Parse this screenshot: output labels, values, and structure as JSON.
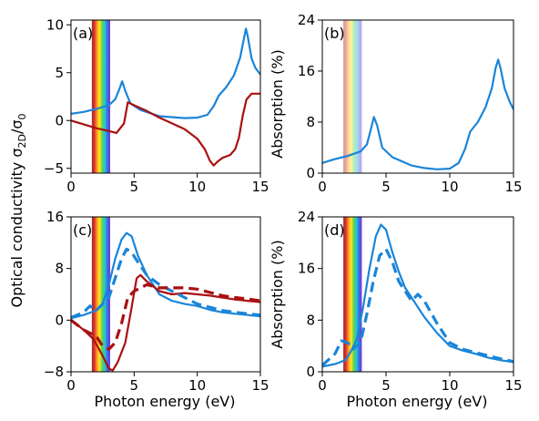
{
  "figure": {
    "ylabel_left_main": "Optical conductivity σ",
    "ylabel_left_sub": "2D",
    "ylabel_left_slash": "/σ",
    "ylabel_left_sub2": "0",
    "xlabel": "Photon energy (eV)",
    "ylabel_right": "Absorption (%)"
  },
  "colors": {
    "blue": "#1a85d9",
    "red": "#aa1010"
  },
  "spectrum_band_ev": [
    1.65,
    3.1
  ],
  "chart_data": [
    {
      "type": "line",
      "panel_label": "(a)",
      "xlim": [
        0,
        15
      ],
      "ylim": [
        -5.5,
        10.5
      ],
      "xticks": [
        0,
        5,
        10,
        15
      ],
      "yticks": [
        -5,
        0,
        5,
        10
      ],
      "xticklabels": [
        "0",
        "5",
        "10",
        "15"
      ],
      "yticklabels": [
        "−5",
        "0",
        "5",
        "10"
      ],
      "series": [
        {
          "color": "#1a85d9",
          "dash": false,
          "points": [
            [
              0,
              0.7
            ],
            [
              1,
              0.9
            ],
            [
              2,
              1.2
            ],
            [
              3,
              1.6
            ],
            [
              3.5,
              2.2
            ],
            [
              3.8,
              3.2
            ],
            [
              4.05,
              4.1
            ],
            [
              4.3,
              3.1
            ],
            [
              4.7,
              1.8
            ],
            [
              5.5,
              1.1
            ],
            [
              7,
              0.45
            ],
            [
              9,
              0.25
            ],
            [
              10,
              0.3
            ],
            [
              10.8,
              0.6
            ],
            [
              11.3,
              1.5
            ],
            [
              11.7,
              2.6
            ],
            [
              12.3,
              3.5
            ],
            [
              12.9,
              4.7
            ],
            [
              13.4,
              6.6
            ],
            [
              13.7,
              8.6
            ],
            [
              13.85,
              9.6
            ],
            [
              14.0,
              8.8
            ],
            [
              14.3,
              6.5
            ],
            [
              14.6,
              5.5
            ],
            [
              15,
              4.8
            ]
          ]
        },
        {
          "color": "#aa1010",
          "dash": false,
          "points": [
            [
              0,
              0
            ],
            [
              1,
              -0.4
            ],
            [
              2,
              -0.8
            ],
            [
              3,
              -1.1
            ],
            [
              3.6,
              -1.3
            ],
            [
              4.2,
              -0.3
            ],
            [
              4.5,
              1.9
            ],
            [
              5,
              1.6
            ],
            [
              6,
              1.0
            ],
            [
              7,
              0.3
            ],
            [
              8,
              -0.3
            ],
            [
              9,
              -0.9
            ],
            [
              10,
              -1.9
            ],
            [
              10.6,
              -3.0
            ],
            [
              11.0,
              -4.2
            ],
            [
              11.3,
              -4.7
            ],
            [
              11.6,
              -4.3
            ],
            [
              12,
              -3.9
            ],
            [
              12.6,
              -3.6
            ],
            [
              13,
              -3.0
            ],
            [
              13.3,
              -1.8
            ],
            [
              13.6,
              0.5
            ],
            [
              13.9,
              2.2
            ],
            [
              14.3,
              2.8
            ],
            [
              15,
              2.8
            ]
          ]
        }
      ]
    },
    {
      "type": "line",
      "panel_label": "(b)",
      "xlim": [
        0,
        15
      ],
      "ylim": [
        0,
        24
      ],
      "xticks": [
        0,
        5,
        10,
        15
      ],
      "yticks": [
        0,
        8,
        16,
        24
      ],
      "xticklabels": [
        "0",
        "5",
        "10",
        "15"
      ],
      "yticklabels": [
        "0",
        "8",
        "16",
        "24"
      ],
      "series": [
        {
          "color": "#1a85d9",
          "dash": false,
          "points": [
            [
              0,
              1.6
            ],
            [
              1,
              2.2
            ],
            [
              2,
              2.7
            ],
            [
              3,
              3.4
            ],
            [
              3.5,
              4.5
            ],
            [
              3.8,
              6.8
            ],
            [
              4.05,
              8.8
            ],
            [
              4.3,
              7.5
            ],
            [
              4.7,
              4.0
            ],
            [
              5.5,
              2.5
            ],
            [
              7,
              1.2
            ],
            [
              8,
              0.8
            ],
            [
              9,
              0.6
            ],
            [
              10,
              0.7
            ],
            [
              10.7,
              1.6
            ],
            [
              11.2,
              3.8
            ],
            [
              11.6,
              6.5
            ],
            [
              12.2,
              8.0
            ],
            [
              12.8,
              10.3
            ],
            [
              13.3,
              13.3
            ],
            [
              13.6,
              16.5
            ],
            [
              13.8,
              17.8
            ],
            [
              14.0,
              16.3
            ],
            [
              14.3,
              13.3
            ],
            [
              14.7,
              11.2
            ],
            [
              15,
              10.0
            ]
          ]
        }
      ]
    },
    {
      "type": "line",
      "panel_label": "(c)",
      "xlim": [
        0,
        15
      ],
      "ylim": [
        -8,
        16
      ],
      "xticks": [
        0,
        5,
        10,
        15
      ],
      "yticks": [
        -8,
        0,
        8,
        16
      ],
      "xticklabels": [
        "0",
        "5",
        "10",
        "15"
      ],
      "yticklabels": [
        "−8",
        "0",
        "8",
        "16"
      ],
      "series": [
        {
          "color": "#1a85d9",
          "dash": false,
          "points": [
            [
              0,
              0.3
            ],
            [
              1,
              0.8
            ],
            [
              2,
              1.5
            ],
            [
              2.5,
              2.5
            ],
            [
              3,
              5.5
            ],
            [
              3.5,
              9.5
            ],
            [
              4,
              12.5
            ],
            [
              4.4,
              13.5
            ],
            [
              4.8,
              13.0
            ],
            [
              5.3,
              10.0
            ],
            [
              6,
              7.0
            ],
            [
              7,
              4.0
            ],
            [
              8,
              3.0
            ],
            [
              9,
              2.5
            ],
            [
              10,
              2.2
            ],
            [
              11,
              1.6
            ],
            [
              12,
              1.2
            ],
            [
              13,
              1.0
            ],
            [
              14,
              0.8
            ],
            [
              15,
              0.6
            ]
          ]
        },
        {
          "color": "#aa1010",
          "dash": false,
          "points": [
            [
              0,
              0
            ],
            [
              1,
              -1.5
            ],
            [
              1.8,
              -3.0
            ],
            [
              2.5,
              -5.5
            ],
            [
              3.0,
              -7.5
            ],
            [
              3.3,
              -7.8
            ],
            [
              3.7,
              -6.5
            ],
            [
              4.3,
              -3.5
            ],
            [
              4.8,
              2.0
            ],
            [
              5.2,
              6.5
            ],
            [
              5.5,
              7.0
            ],
            [
              6,
              6.0
            ],
            [
              7,
              4.5
            ],
            [
              8,
              4.0
            ],
            [
              9,
              4.2
            ],
            [
              10,
              4.0
            ],
            [
              11,
              3.8
            ],
            [
              12,
              3.5
            ],
            [
              13,
              3.2
            ],
            [
              14,
              3.0
            ],
            [
              15,
              2.8
            ]
          ]
        },
        {
          "color": "#1a85d9",
          "dash": true,
          "points": [
            [
              0,
              0.4
            ],
            [
              1,
              1.2
            ],
            [
              1.5,
              2.2
            ],
            [
              2,
              1.5
            ],
            [
              2.5,
              2.5
            ],
            [
              3,
              3.5
            ],
            [
              3.5,
              6.5
            ],
            [
              4,
              9.5
            ],
            [
              4.4,
              11.0
            ],
            [
              4.8,
              10.5
            ],
            [
              5.3,
              9.0
            ],
            [
              6,
              7.0
            ],
            [
              7,
              5.5
            ],
            [
              8,
              4.5
            ],
            [
              9,
              3.5
            ],
            [
              10,
              2.5
            ],
            [
              11,
              2.0
            ],
            [
              12,
              1.5
            ],
            [
              13,
              1.2
            ],
            [
              14,
              1.0
            ],
            [
              15,
              0.8
            ]
          ]
        },
        {
          "color": "#aa1010",
          "dash": true,
          "points": [
            [
              0,
              0
            ],
            [
              1,
              -1.5
            ],
            [
              2,
              -2.5
            ],
            [
              2.5,
              -4.0
            ],
            [
              3,
              -4.5
            ],
            [
              3.5,
              -3.5
            ],
            [
              4,
              -0.5
            ],
            [
              4.5,
              3.5
            ],
            [
              5,
              4.5
            ],
            [
              6,
              5.5
            ],
            [
              7,
              5.0
            ],
            [
              8,
              5.0
            ],
            [
              9,
              5.0
            ],
            [
              10,
              4.8
            ],
            [
              11,
              4.3
            ],
            [
              12,
              3.8
            ],
            [
              13,
              3.5
            ],
            [
              14,
              3.3
            ],
            [
              15,
              3.0
            ]
          ]
        }
      ]
    },
    {
      "type": "line",
      "panel_label": "(d)",
      "xlim": [
        0,
        15
      ],
      "ylim": [
        0,
        24
      ],
      "xticks": [
        0,
        5,
        10,
        15
      ],
      "yticks": [
        0,
        8,
        16,
        24
      ],
      "xticklabels": [
        "0",
        "5",
        "10",
        "15"
      ],
      "yticklabels": [
        "0",
        "8",
        "16",
        "24"
      ],
      "series": [
        {
          "color": "#1a85d9",
          "dash": false,
          "points": [
            [
              0,
              0.8
            ],
            [
              1,
              1.2
            ],
            [
              1.8,
              1.8
            ],
            [
              2.2,
              3.0
            ],
            [
              2.7,
              5.0
            ],
            [
              3.2,
              10.0
            ],
            [
              3.7,
              16.0
            ],
            [
              4.2,
              21.0
            ],
            [
              4.6,
              22.8
            ],
            [
              5,
              22.0
            ],
            [
              5.5,
              18.5
            ],
            [
              6,
              15.5
            ],
            [
              6.5,
              13.0
            ],
            [
              7,
              11.5
            ],
            [
              8,
              8.5
            ],
            [
              9,
              6.0
            ],
            [
              10,
              4.0
            ],
            [
              11,
              3.3
            ],
            [
              12,
              2.8
            ],
            [
              13,
              2.2
            ],
            [
              14,
              1.8
            ],
            [
              15,
              1.5
            ]
          ]
        },
        {
          "color": "#1a85d9",
          "dash": true,
          "points": [
            [
              0,
              1.0
            ],
            [
              1,
              2.8
            ],
            [
              1.5,
              4.8
            ],
            [
              2,
              4.5
            ],
            [
              2.4,
              3.5
            ],
            [
              3,
              4.5
            ],
            [
              3.5,
              9.0
            ],
            [
              4,
              14.0
            ],
            [
              4.5,
              18.0
            ],
            [
              5,
              19.0
            ],
            [
              5.5,
              17.0
            ],
            [
              6,
              14.0
            ],
            [
              6.5,
              12.5
            ],
            [
              7,
              11.0
            ],
            [
              7.5,
              12.0
            ],
            [
              8,
              11.0
            ],
            [
              9,
              7.5
            ],
            [
              10,
              4.5
            ],
            [
              11,
              3.5
            ],
            [
              12,
              3.0
            ],
            [
              13,
              2.5
            ],
            [
              14,
              2.0
            ],
            [
              15,
              1.6
            ]
          ]
        }
      ]
    }
  ]
}
